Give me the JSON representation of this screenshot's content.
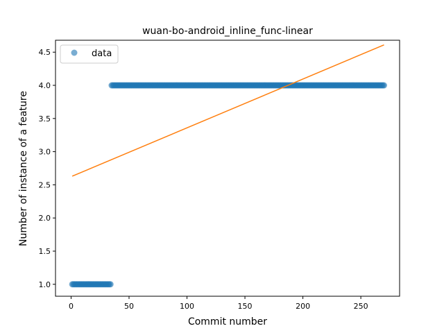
{
  "chart_data": {
    "type": "scatter",
    "title": "wuan-bo-android_inline_func-linear",
    "xlabel": "Commit number",
    "ylabel": "Number of instance of a feature",
    "xlim": [
      -13.45,
      283.45
    ],
    "ylim": [
      0.82,
      4.68
    ],
    "xticks": [
      0,
      50,
      100,
      150,
      200,
      250
    ],
    "yticks": [
      1.0,
      1.5,
      2.0,
      2.5,
      3.0,
      3.5,
      4.0,
      4.5
    ],
    "xtick_labels": [
      "0",
      "50",
      "100",
      "150",
      "200",
      "250"
    ],
    "ytick_labels": [
      "1.0",
      "1.5",
      "2.0",
      "2.5",
      "3.0",
      "3.5",
      "4.0",
      "4.5"
    ],
    "legend": {
      "placement": "upper-left",
      "entries": [
        "data"
      ]
    },
    "grid": false,
    "series": [
      {
        "name": "data",
        "kind": "scatter",
        "color": "#1f77b4",
        "alpha": 0.6,
        "segments": [
          {
            "x_start": 1,
            "x_end": 34,
            "y": 1.0
          },
          {
            "x_start": 35,
            "x_end": 270,
            "y": 4.0
          }
        ]
      },
      {
        "kind": "line",
        "color": "#ff7f0e",
        "x": [
          1,
          270
        ],
        "y": [
          2.63,
          4.61
        ]
      }
    ]
  }
}
